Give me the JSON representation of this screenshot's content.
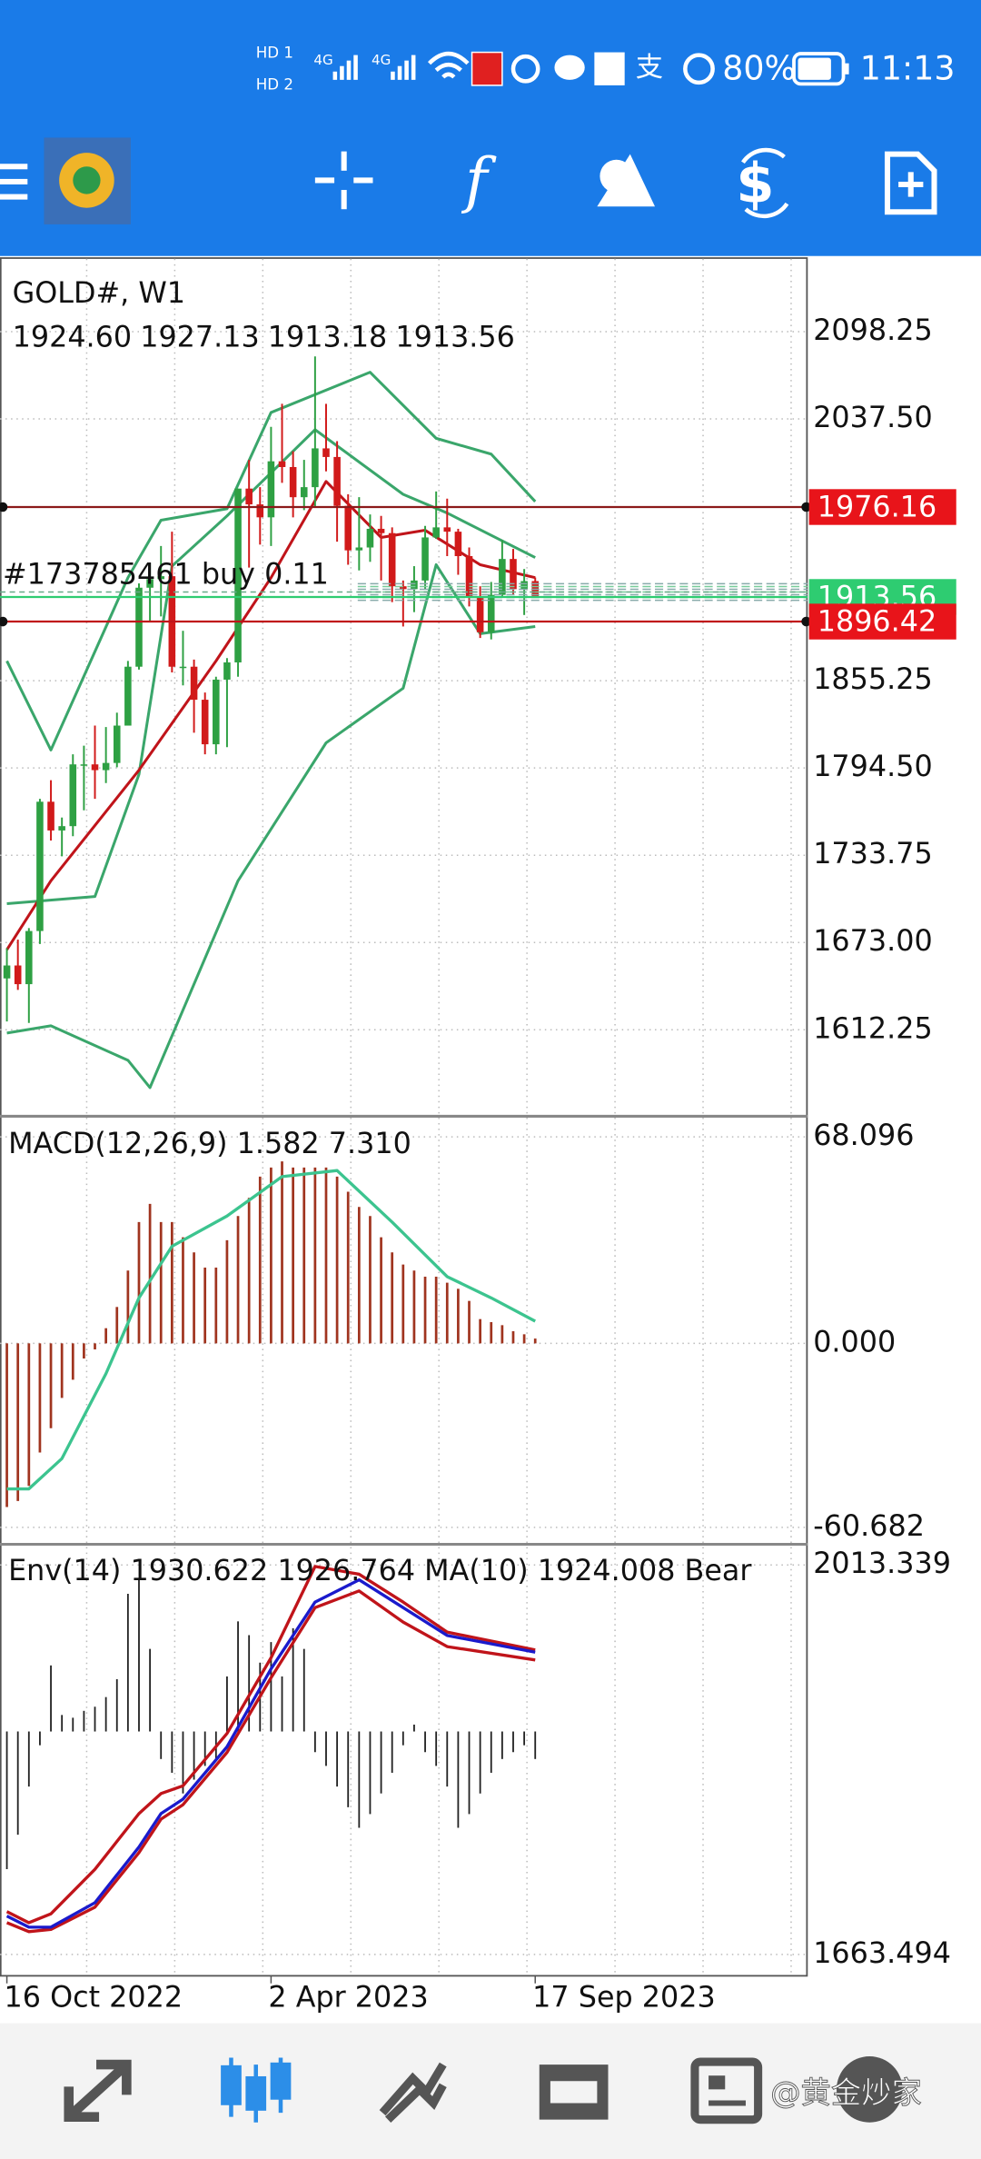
{
  "status_bar": {
    "sim_labels": [
      "HD 1",
      "HD 2"
    ],
    "network_labels": [
      "4G",
      "4G"
    ],
    "battery": {
      "value": 80,
      "label": "80%"
    },
    "time": "11:13"
  },
  "chart_data": [
    {
      "type": "candlestick",
      "title": "GOLD#, W1",
      "ohlc_labels": [
        "1924.60",
        "1927.13",
        "1913.18",
        "1913.56"
      ],
      "open": [
        1648,
        1657,
        1644,
        1681,
        1771,
        1751,
        1754,
        1797,
        1797,
        1793,
        1798,
        1824,
        1865,
        1920,
        1926,
        1928,
        1865,
        1865,
        1842,
        1811,
        1856,
        1868,
        1989,
        1978,
        1969,
        2008,
        2004,
        1983,
        1990,
        2017,
        2011,
        1977,
        1946,
        1948,
        1961,
        1958,
        1921,
        1919,
        1925,
        1955,
        1962,
        1959,
        1942,
        1914,
        1889,
        1915,
        1940,
        1919,
        1924.6
      ],
      "high": [
        1669,
        1675,
        1683,
        1773,
        1786,
        1760,
        1804,
        1810,
        1824,
        1823,
        1833,
        1869,
        1923,
        1937,
        1949,
        1959,
        1890,
        1870,
        1847,
        1858,
        1871,
        1989,
        2009,
        1990,
        2032,
        2048,
        2015,
        2009,
        2081,
        2048,
        2022,
        1985,
        1983,
        1971,
        1970,
        1962,
        1925,
        1935,
        1963,
        1987,
        1982,
        1961,
        1948,
        1921,
        1924,
        1953,
        1947,
        1933,
        1927.13
      ],
      "low": [
        1618,
        1640,
        1617,
        1672,
        1744,
        1733,
        1747,
        1765,
        1773,
        1784,
        1795,
        1824,
        1863,
        1897,
        1900,
        1861,
        1852,
        1819,
        1804,
        1804,
        1809,
        1858,
        1934,
        1950,
        1949,
        1993,
        1969,
        1974,
        1976,
        2001,
        1952,
        1936,
        1932,
        1938,
        1925,
        1910,
        1893,
        1903,
        1919,
        1954,
        1942,
        1929,
        1907,
        1885,
        1884,
        1913,
        1915,
        1901,
        1913.18
      ],
      "close": [
        1657,
        1644,
        1681,
        1771,
        1751,
        1754,
        1797,
        1797,
        1793,
        1798,
        1824,
        1865,
        1920,
        1926,
        1928,
        1865,
        1865,
        1842,
        1811,
        1856,
        1868,
        1989,
        1978,
        1969,
        2008,
        2004,
        1983,
        1990,
        2017,
        2011,
        1977,
        1946,
        1948,
        1961,
        1958,
        1921,
        1919,
        1925,
        1955,
        1962,
        1959,
        1942,
        1914,
        1889,
        1915,
        1940,
        1919,
        1924.6,
        1913.56
      ],
      "up_color": "#2ea043",
      "down_color": "#d11a1a",
      "lines": [
        {
          "color": "#3aa66b",
          "x": [
            0,
            4,
            11,
            14,
            20,
            24,
            33,
            39,
            44,
            48
          ],
          "values": [
            1869,
            1807,
            1927,
            1967,
            1975,
            2042,
            2070,
            2024,
            2013,
            1980
          ]
        },
        {
          "color": "#3aa66b",
          "x": [
            0,
            8,
            12,
            15,
            20,
            28,
            36,
            40,
            48
          ],
          "values": [
            1700,
            1705,
            1790,
            1935,
            1970,
            2030,
            1985,
            1972,
            1941
          ]
        },
        {
          "color": "#3aa66b",
          "x": [
            0,
            4,
            11,
            13,
            21,
            29,
            36,
            39,
            43,
            48
          ],
          "values": [
            1610,
            1615,
            1591,
            1572,
            1716,
            1812,
            1850,
            1936,
            1888,
            1893
          ]
        },
        {
          "color": "#c0141a",
          "x": [
            0,
            4,
            12,
            19,
            24,
            29,
            34,
            38,
            43,
            48
          ],
          "values": [
            1668,
            1716,
            1793,
            1869,
            1927,
            1994,
            1955,
            1960,
            1936,
            1927
          ]
        }
      ],
      "trade": {
        "label": "#173785461 buy 0.11",
        "value": 1917
      },
      "price_lines": [
        {
          "value": 1976.16,
          "color": "#8b1a1a",
          "box_color": "#e8141a"
        },
        {
          "value": 1913.56,
          "color": "#2ecc71",
          "box_color": "#2ecc71"
        },
        {
          "value": 1896.42,
          "color": "#c0141a",
          "box_color": "#e8141a"
        }
      ],
      "ylim": [
        1553,
        2149
      ],
      "yticks": [
        2098.25,
        {
          "value": 2037.5,
          "label": "2037.50"
        },
        1855.25,
        {
          "value": 1794.5,
          "label": "1794.50"
        },
        1733.75,
        {
          "value": 1673,
          "label": "1673.00"
        },
        1612.25
      ],
      "grid": true
    },
    {
      "type": "macd",
      "title": "MACD(12,26,9) 1.582 7.310",
      "values": [
        -54,
        -52,
        -47,
        -36,
        -28,
        -18,
        -12,
        -5,
        -2,
        5,
        12,
        24,
        40,
        46,
        40,
        40,
        35,
        30,
        25,
        25,
        34,
        42,
        48,
        55,
        58,
        60,
        58,
        58,
        58,
        58,
        55,
        50,
        45,
        42,
        35,
        30,
        26,
        24,
        22,
        22,
        20,
        18,
        14,
        8,
        7,
        6,
        4,
        3,
        1.582
      ],
      "color": "#a0341f",
      "signal": {
        "color": "#3cc48f",
        "x": [
          0,
          2,
          5,
          9,
          12,
          15,
          20,
          25,
          30,
          35,
          40,
          44,
          48
        ],
        "values": [
          -48,
          -48,
          -38,
          -10,
          15,
          32,
          42,
          55,
          57,
          40,
          22,
          15,
          7.31
        ]
      },
      "ylim": [
        -65.37,
        74.45
      ],
      "yticks": [
        68.096,
        {
          "value": 0,
          "label": "0.000"
        },
        -60.682
      ],
      "grid": true
    },
    {
      "type": "envelopes",
      "title": "Env(14) 1930.622 1926.764 MA(10) 1924.008 Bear",
      "lines": [
        {
          "color": "#c0141a",
          "x": [
            0,
            2,
            4,
            8,
            12,
            14,
            16,
            20,
            24,
            28,
            32,
            36,
            40,
            48
          ],
          "values": [
            1702,
            1692,
            1700,
            1740,
            1790,
            1808,
            1815,
            1862,
            1930,
            2012,
            2005,
            1980,
            1953,
            1937
          ]
        },
        {
          "color": "#c0141a",
          "x": [
            0,
            2,
            4,
            8,
            12,
            14,
            16,
            20,
            24,
            28,
            32,
            36,
            40,
            48
          ],
          "values": [
            1692,
            1684,
            1686,
            1706,
            1755,
            1785,
            1798,
            1845,
            1912,
            1975,
            1990,
            1962,
            1940,
            1928
          ]
        },
        {
          "color": "#1a1acc",
          "x": [
            0,
            2,
            4,
            8,
            12,
            14,
            16,
            20,
            24,
            28,
            32,
            36,
            40,
            48
          ],
          "values": [
            1698,
            1688,
            1688,
            1710,
            1760,
            1790,
            1803,
            1850,
            1920,
            1980,
            2000,
            1975,
            1950,
            1935
          ]
        }
      ],
      "bears": [
        -100,
        -75,
        -40,
        -10,
        48,
        12,
        10,
        15,
        18,
        25,
        38,
        100,
        110,
        60,
        -20,
        -30,
        -45,
        -35,
        -25,
        -20,
        40,
        80,
        70,
        50,
        65,
        40,
        75,
        60,
        -15,
        -25,
        -40,
        -55,
        -70,
        -60,
        -45,
        -30,
        -10,
        5,
        -15,
        -25,
        -40,
        -70,
        -60,
        -45,
        -30,
        -20,
        -15,
        -10,
        -20
      ],
      "bears_color": "#222222",
      "ylim": [
        1644.95,
        2029.4
      ],
      "yticks": [
        2013.339,
        1663.494
      ],
      "categories": [
        "16 Oct 2022",
        null,
        null,
        null,
        null,
        null,
        null,
        null,
        null,
        null,
        null,
        null,
        null,
        null,
        null,
        null,
        null,
        null,
        null,
        null,
        null,
        null,
        null,
        null,
        "2 Apr 2023",
        null,
        null,
        null,
        null,
        null,
        null,
        null,
        null,
        null,
        null,
        null,
        null,
        null,
        null,
        null,
        null,
        null,
        null,
        null,
        null,
        null,
        null,
        null,
        "17 Sep 2023"
      ],
      "grid": true
    }
  ],
  "watermark": "@黄金炒家"
}
